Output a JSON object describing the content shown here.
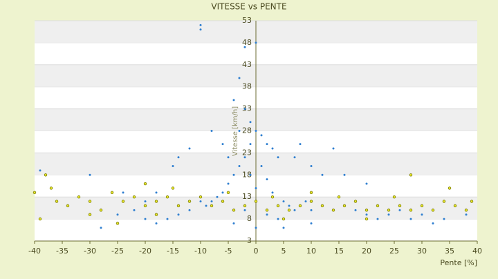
{
  "chart_data": {
    "type": "scatter",
    "title": "VITESSE vs PENTE",
    "x_label": "Pente [%]",
    "y_label": "Vitesse [km/h]",
    "xlim": [
      -40,
      40
    ],
    "xticks": [
      -40,
      -35,
      -30,
      -25,
      -20,
      -15,
      -10,
      -5,
      0,
      5,
      10,
      15,
      20,
      25,
      30,
      35,
      40
    ],
    "ylim": [
      3,
      53
    ],
    "yticks": [
      3,
      8,
      13,
      18,
      23,
      28,
      33,
      38,
      43,
      48,
      53
    ],
    "grid": true,
    "series": [
      {
        "color": "#2f7fd0",
        "x": [
          -10,
          -10,
          -2,
          0,
          -4,
          -3,
          -2,
          -1,
          0,
          1,
          2,
          3,
          4,
          -1,
          -2,
          -3,
          -4,
          -5,
          -6,
          -7,
          -8,
          -9,
          -10,
          -12,
          -14,
          -16,
          -18,
          -20,
          -22,
          -25,
          -28,
          -30,
          -39,
          -15,
          -12,
          -8,
          -6,
          -5,
          -3,
          -1,
          0,
          1,
          2,
          3,
          5,
          6,
          7,
          8,
          9,
          10,
          12,
          14,
          16,
          18,
          20,
          22,
          24,
          26,
          28,
          30,
          32,
          34,
          38,
          7,
          8,
          10,
          12,
          14,
          16,
          20,
          -18,
          -20,
          -14,
          -24,
          2,
          4,
          -2,
          0,
          -4,
          5,
          10
        ],
        "y": [
          52,
          51,
          47,
          48,
          35,
          40,
          33,
          30,
          28,
          27,
          25,
          24,
          22,
          25,
          22,
          20,
          18,
          16,
          14,
          13,
          12,
          11,
          12,
          10,
          9,
          8,
          7,
          8,
          10,
          9,
          6,
          18,
          19,
          20,
          24,
          28,
          25,
          22,
          28,
          18,
          15,
          20,
          17,
          14,
          12,
          11,
          10,
          11,
          12,
          10,
          11,
          10,
          11,
          10,
          9,
          8,
          9,
          10,
          8,
          9,
          7,
          8,
          9,
          22,
          25,
          20,
          18,
          24,
          18,
          16,
          14,
          12,
          22,
          14,
          9,
          8,
          10,
          6,
          7,
          6,
          7
        ]
      },
      {
        "color": "#7a7a00",
        "x": [
          -40,
          -38,
          -36,
          -34,
          -32,
          -30,
          -28,
          -26,
          -24,
          -22,
          -20,
          -18,
          -16,
          -14,
          -12,
          -10,
          -8,
          -6,
          -4,
          -2,
          0,
          2,
          4,
          6,
          8,
          10,
          12,
          14,
          16,
          18,
          20,
          22,
          24,
          26,
          28,
          30,
          32,
          34,
          36,
          38,
          39,
          -39,
          -37,
          -25,
          -20,
          -15,
          -5,
          3,
          10,
          15,
          25,
          28,
          35,
          -30,
          -18,
          5,
          20
        ],
        "y": [
          14,
          18,
          12,
          11,
          13,
          12,
          10,
          14,
          12,
          13,
          11,
          12,
          13,
          11,
          12,
          13,
          11,
          12,
          10,
          11,
          12,
          10,
          11,
          10,
          11,
          12,
          11,
          10,
          11,
          12,
          10,
          11,
          10,
          11,
          10,
          11,
          10,
          12,
          11,
          10,
          12,
          8,
          15,
          7,
          16,
          15,
          14,
          13,
          14,
          13,
          13,
          18,
          15,
          9,
          9,
          8,
          8
        ]
      }
    ]
  }
}
